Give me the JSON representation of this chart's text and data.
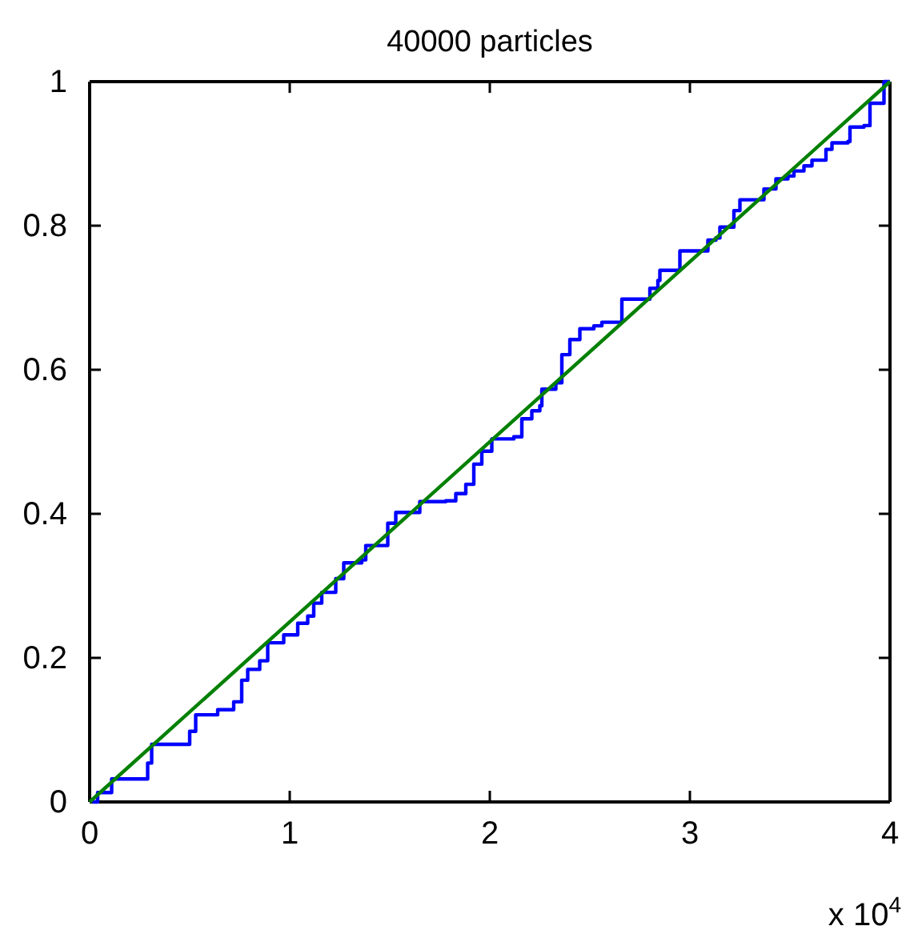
{
  "chart_data": {
    "type": "line",
    "title": "40000 particles",
    "xlim": [
      0,
      4
    ],
    "ylim": [
      0,
      1
    ],
    "xticks": [
      0,
      1,
      2,
      3,
      4
    ],
    "yticks": [
      0,
      0.2,
      0.4,
      0.6,
      0.8,
      1
    ],
    "grid": false,
    "marker": "none",
    "line_style": "solid",
    "annotations": [
      "x 10$^{4}$"
    ],
    "series": [
      {
        "type": "step",
        "color": "#0000ff",
        "x": [
          0.013,
          0.04,
          0.11,
          0.29,
          0.31,
          0.5,
          0.53,
          0.64,
          0.72,
          0.76,
          0.79,
          0.85,
          0.89,
          0.97,
          1.04,
          1.09,
          1.12,
          1.16,
          1.23,
          1.27,
          1.36,
          1.38,
          1.49,
          1.53,
          1.65,
          1.78,
          1.83,
          1.88,
          1.92,
          1.96,
          2.01,
          2.12,
          2.16,
          2.21,
          2.25,
          2.26,
          2.33,
          2.36,
          2.4,
          2.45,
          2.52,
          2.56,
          2.66,
          2.8,
          2.84,
          2.85,
          2.95,
          3.09,
          3.13,
          3.15,
          3.22,
          3.25,
          3.37,
          3.43,
          3.49,
          3.52,
          3.57,
          3.61,
          3.68,
          3.71,
          3.79,
          3.8,
          3.87,
          3.9,
          3.97,
          4
        ],
        "values": [
          0,
          0.013,
          0.032,
          0.054,
          0.08,
          0.098,
          0.121,
          0.128,
          0.139,
          0.169,
          0.184,
          0.196,
          0.221,
          0.232,
          0.248,
          0.258,
          0.276,
          0.291,
          0.31,
          0.332,
          0.336,
          0.356,
          0.387,
          0.402,
          0.417,
          0.418,
          0.428,
          0.441,
          0.469,
          0.487,
          0.504,
          0.507,
          0.532,
          0.543,
          0.55,
          0.573,
          0.582,
          0.621,
          0.642,
          0.657,
          0.661,
          0.666,
          0.698,
          0.713,
          0.724,
          0.738,
          0.765,
          0.78,
          0.783,
          0.798,
          0.821,
          0.836,
          0.851,
          0.865,
          0.869,
          0.876,
          0.883,
          0.891,
          0.906,
          0.915,
          0.917,
          0.937,
          0.939,
          0.97,
          1,
          1
        ]
      },
      {
        "type": "line",
        "color": "#008000",
        "x": [
          0,
          4
        ],
        "values": [
          0,
          1
        ]
      }
    ]
  }
}
